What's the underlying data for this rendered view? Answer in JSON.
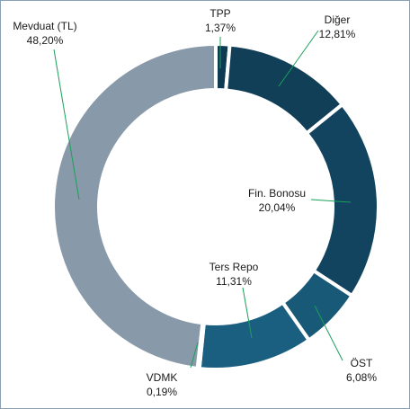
{
  "chart_data": {
    "type": "donut",
    "categories": [
      "TPP",
      "Diğer",
      "Fin. Bonosu",
      "ÖST",
      "Ters Repo",
      "VDMK",
      "Mevduat (TL)"
    ],
    "values": [
      1.37,
      12.81,
      20.04,
      6.08,
      11.31,
      0.19,
      48.2
    ],
    "value_labels": [
      "1,37%",
      "12,81%",
      "20,04%",
      "6,08%",
      "11,31%",
      "0,19%",
      "48,20%"
    ],
    "colors": [
      "#0e3a52",
      "#123f58",
      "#12445f",
      "#185977",
      "#1a5e80",
      "#1a5e80",
      "#8899a9"
    ]
  }
}
